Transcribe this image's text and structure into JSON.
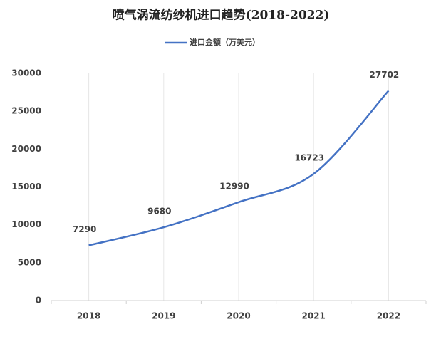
{
  "chart_data": {
    "type": "line",
    "title": "喷气涡流纺纱机进口趋势(2018-2022)",
    "categories": [
      "2018",
      "2019",
      "2020",
      "2021",
      "2022"
    ],
    "series": [
      {
        "name": "进口金额（万美元）",
        "color": "#4472c4",
        "values": [
          7290,
          9680,
          12990,
          16723,
          27702
        ]
      }
    ],
    "ylim": [
      0,
      30000
    ],
    "yticks": [
      0,
      5000,
      10000,
      15000,
      20000,
      25000,
      30000
    ],
    "grid": true,
    "legend": "top",
    "smooth": true,
    "data_labels": true
  }
}
